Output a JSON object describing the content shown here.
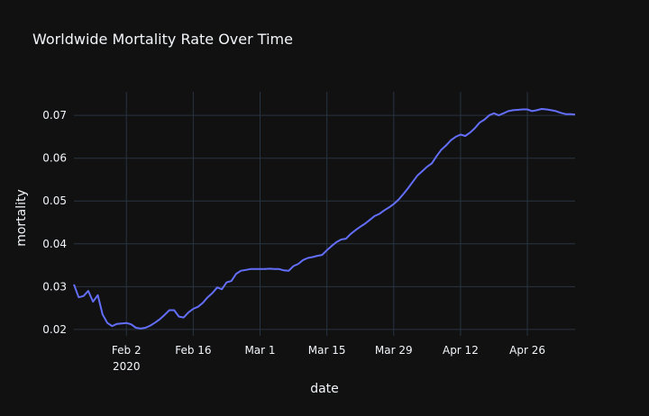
{
  "chart_data": {
    "type": "line",
    "title": "Worldwide Mortality Rate Over Time",
    "xlabel": "date",
    "ylabel": "mortality",
    "x_start": "2020-01-22",
    "x_end": "2020-05-06",
    "xlim": [
      "2020-01-22",
      "2020-05-06"
    ],
    "ylim": [
      0.0185,
      0.0755
    ],
    "grid": true,
    "x_ticks": [
      {
        "date": "2020-02-02",
        "label": "Feb 2",
        "sublabel": "2020"
      },
      {
        "date": "2020-02-16",
        "label": "Feb 16",
        "sublabel": ""
      },
      {
        "date": "2020-03-01",
        "label": "Mar 1",
        "sublabel": ""
      },
      {
        "date": "2020-03-15",
        "label": "Mar 15",
        "sublabel": ""
      },
      {
        "date": "2020-03-29",
        "label": "Mar 29",
        "sublabel": ""
      },
      {
        "date": "2020-04-12",
        "label": "Apr 12",
        "sublabel": ""
      },
      {
        "date": "2020-04-26",
        "label": "Apr 26",
        "sublabel": ""
      }
    ],
    "y_ticks": [
      {
        "value": 0.02,
        "label": "0.02"
      },
      {
        "value": 0.03,
        "label": "0.03"
      },
      {
        "value": 0.04,
        "label": "0.04"
      },
      {
        "value": 0.05,
        "label": "0.05"
      },
      {
        "value": 0.06,
        "label": "0.06"
      },
      {
        "value": 0.07,
        "label": "0.07"
      }
    ],
    "series": [
      {
        "color": "#636efa",
        "x": [
          "2020-01-22",
          "2020-01-23",
          "2020-01-24",
          "2020-01-25",
          "2020-01-26",
          "2020-01-27",
          "2020-01-28",
          "2020-01-29",
          "2020-01-30",
          "2020-01-31",
          "2020-02-01",
          "2020-02-02",
          "2020-02-03",
          "2020-02-04",
          "2020-02-05",
          "2020-02-06",
          "2020-02-07",
          "2020-02-08",
          "2020-02-09",
          "2020-02-10",
          "2020-02-11",
          "2020-02-12",
          "2020-02-13",
          "2020-02-14",
          "2020-02-15",
          "2020-02-16",
          "2020-02-17",
          "2020-02-18",
          "2020-02-19",
          "2020-02-20",
          "2020-02-21",
          "2020-02-22",
          "2020-02-23",
          "2020-02-24",
          "2020-02-25",
          "2020-02-26",
          "2020-02-27",
          "2020-02-28",
          "2020-02-29",
          "2020-03-01",
          "2020-03-02",
          "2020-03-03",
          "2020-03-04",
          "2020-03-05",
          "2020-03-06",
          "2020-03-07",
          "2020-03-08",
          "2020-03-09",
          "2020-03-10",
          "2020-03-11",
          "2020-03-12",
          "2020-03-13",
          "2020-03-14",
          "2020-03-15",
          "2020-03-16",
          "2020-03-17",
          "2020-03-18",
          "2020-03-19",
          "2020-03-20",
          "2020-03-21",
          "2020-03-22",
          "2020-03-23",
          "2020-03-24",
          "2020-03-25",
          "2020-03-26",
          "2020-03-27",
          "2020-03-28",
          "2020-03-29",
          "2020-03-30",
          "2020-03-31",
          "2020-04-01",
          "2020-04-02",
          "2020-04-03",
          "2020-04-04",
          "2020-04-05",
          "2020-04-06",
          "2020-04-07",
          "2020-04-08",
          "2020-04-09",
          "2020-04-10",
          "2020-04-11",
          "2020-04-12",
          "2020-04-13",
          "2020-04-14",
          "2020-04-15",
          "2020-04-16",
          "2020-04-17",
          "2020-04-18",
          "2020-04-19",
          "2020-04-20",
          "2020-04-21",
          "2020-04-22",
          "2020-04-23",
          "2020-04-24",
          "2020-04-25",
          "2020-04-26",
          "2020-04-27",
          "2020-04-28",
          "2020-04-29",
          "2020-04-30",
          "2020-05-01",
          "2020-05-02",
          "2020-05-03",
          "2020-05-04",
          "2020-05-05",
          "2020-05-06"
        ],
        "y": [
          0.0305,
          0.0275,
          0.0278,
          0.029,
          0.0265,
          0.028,
          0.0235,
          0.0215,
          0.0208,
          0.0213,
          0.0214,
          0.0215,
          0.0212,
          0.0204,
          0.0202,
          0.0204,
          0.0209,
          0.0216,
          0.0224,
          0.0234,
          0.0245,
          0.0245,
          0.023,
          0.0228,
          0.024,
          0.0248,
          0.0253,
          0.0262,
          0.0275,
          0.0285,
          0.0298,
          0.0294,
          0.031,
          0.0313,
          0.033,
          0.0337,
          0.0339,
          0.0341,
          0.0341,
          0.0341,
          0.0341,
          0.0342,
          0.0341,
          0.0341,
          0.0338,
          0.0337,
          0.0348,
          0.0353,
          0.0362,
          0.0367,
          0.0369,
          0.0372,
          0.0374,
          0.0385,
          0.0395,
          0.0404,
          0.041,
          0.0412,
          0.0423,
          0.0432,
          0.044,
          0.0447,
          0.0456,
          0.0465,
          0.047,
          0.0478,
          0.0485,
          0.0493,
          0.0503,
          0.0516,
          0.053,
          0.0545,
          0.056,
          0.057,
          0.058,
          0.0588,
          0.0605,
          0.062,
          0.063,
          0.0642,
          0.065,
          0.0655,
          0.0652,
          0.066,
          0.067,
          0.0683,
          0.069,
          0.07,
          0.0705,
          0.07,
          0.0705,
          0.071,
          0.0712,
          0.0713,
          0.0714,
          0.0714,
          0.071,
          0.0712,
          0.0715,
          0.0714,
          0.0712,
          0.071,
          0.0706,
          0.0703,
          0.0703,
          0.0702
        ]
      }
    ]
  }
}
